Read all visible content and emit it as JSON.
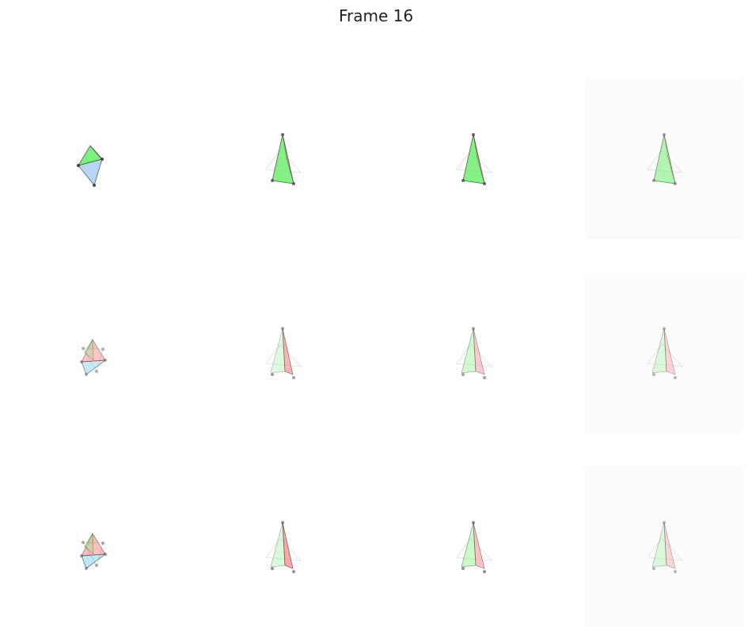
{
  "title": "Frame 16",
  "grid": {
    "rows": 3,
    "cols": 4
  },
  "colors": {
    "green": "#66ee66",
    "red": "#ff6b6b",
    "blue": "#9ec8f0",
    "cyan": "#8ed8f2",
    "edge": "#3a3a3a",
    "panel_shade": "#fcfcfc"
  },
  "panels": [
    {
      "row": 0,
      "col": 0,
      "kind": "octa",
      "shade": false,
      "opacity": 1.0
    },
    {
      "row": 0,
      "col": 1,
      "kind": "spike-green",
      "shade": false,
      "opacity": 0.9
    },
    {
      "row": 0,
      "col": 2,
      "kind": "spike-green",
      "shade": false,
      "opacity": 0.9
    },
    {
      "row": 0,
      "col": 3,
      "kind": "spike-green",
      "shade": true,
      "opacity": 0.55
    },
    {
      "row": 1,
      "col": 0,
      "kind": "star",
      "shade": false,
      "opacity": 0.75
    },
    {
      "row": 1,
      "col": 1,
      "kind": "spike-red",
      "shade": false,
      "opacity": 0.6
    },
    {
      "row": 1,
      "col": 2,
      "kind": "spike-mixed",
      "shade": false,
      "opacity": 0.6
    },
    {
      "row": 1,
      "col": 3,
      "kind": "spike-mixed",
      "shade": true,
      "opacity": 0.45
    },
    {
      "row": 2,
      "col": 0,
      "kind": "star",
      "shade": false,
      "opacity": 0.85
    },
    {
      "row": 2,
      "col": 1,
      "kind": "spike-red",
      "shade": false,
      "opacity": 0.7
    },
    {
      "row": 2,
      "col": 2,
      "kind": "spike-mixed",
      "shade": false,
      "opacity": 0.7
    },
    {
      "row": 2,
      "col": 3,
      "kind": "spike-mixed",
      "shade": true,
      "opacity": 0.45
    }
  ]
}
